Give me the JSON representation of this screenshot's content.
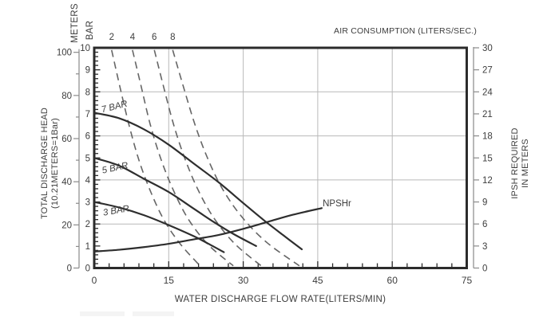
{
  "chart_data": {
    "type": "line",
    "title": "",
    "top_axis": {
      "label": "AIR CONSUMPTION (LITERS/SEC.)",
      "ticks": [
        {
          "label": "2",
          "flow": 3.5
        },
        {
          "label": "4",
          "flow": 7.7
        },
        {
          "label": "6",
          "flow": 12.1
        },
        {
          "label": "8",
          "flow": 15.8
        }
      ]
    },
    "x_axis": {
      "label": "WATER DISCHARGE FLOW RATE(LITERS/MIN)",
      "range": [
        0,
        75
      ],
      "major_ticks": [
        0,
        15,
        30,
        45,
        60,
        75
      ],
      "minor_step": 3
    },
    "left_axis": {
      "meters_label": "METERS",
      "bar_label": "BAR",
      "title_line1": "TOTAL DISCHARGE HEAD",
      "title_line2": "(10.21METERS=1Bar)",
      "bar_range": [
        0,
        10
      ],
      "bar_ticks": [
        0,
        1,
        2,
        3,
        4,
        5,
        6,
        7,
        8,
        9,
        10
      ],
      "bar_minor_step": 0.2,
      "meters_ticks": [
        0,
        20,
        40,
        60,
        80,
        100
      ],
      "meters_minor_step": 10,
      "meters_per_bar": 10.21
    },
    "right_axis": {
      "title_line1": "IPSH REQUIRED",
      "title_line2": "IN METERS",
      "range": [
        0,
        30
      ],
      "ticks": [
        0,
        3,
        6,
        9,
        12,
        15,
        18,
        21,
        24,
        27,
        30
      ]
    },
    "gridlines": {
      "vertical_flow": [
        15,
        30,
        45,
        60
      ],
      "horizontal_bar": [
        2,
        4,
        6,
        8
      ]
    },
    "series": [
      {
        "name": "7 BAR",
        "style": "solid",
        "label": {
          "text": "7 BAR",
          "flow": 4.2,
          "bar": 7.2,
          "angle": -14,
          "italic": true,
          "anchor": "middle"
        },
        "points": [
          [
            0,
            7.05
          ],
          [
            5,
            6.8
          ],
          [
            10,
            6.3
          ],
          [
            15,
            5.6
          ],
          [
            20,
            4.75
          ],
          [
            25,
            3.9
          ],
          [
            30,
            2.95
          ],
          [
            34,
            2.2
          ],
          [
            38,
            1.5
          ],
          [
            41.8,
            0.85
          ]
        ]
      },
      {
        "name": "5 BAR",
        "style": "solid",
        "label": {
          "text": "5 BAR",
          "flow": 4.3,
          "bar": 4.42,
          "angle": -12,
          "italic": true,
          "anchor": "middle"
        },
        "points": [
          [
            0,
            5.0
          ],
          [
            5,
            4.65
          ],
          [
            10,
            4.05
          ],
          [
            15,
            3.45
          ],
          [
            20,
            2.7
          ],
          [
            24,
            2.1
          ],
          [
            28,
            1.55
          ],
          [
            32.6,
            1.0
          ]
        ]
      },
      {
        "name": "3 BAR",
        "style": "solid",
        "label": {
          "text": "3 BAR",
          "flow": 4.5,
          "bar": 2.48,
          "angle": -10,
          "italic": true,
          "anchor": "middle"
        },
        "points": [
          [
            0,
            3.0
          ],
          [
            5,
            2.75
          ],
          [
            10,
            2.4
          ],
          [
            15,
            1.95
          ],
          [
            20,
            1.45
          ],
          [
            23,
            1.1
          ],
          [
            26.1,
            0.72
          ]
        ]
      },
      {
        "name": "NPSHr",
        "style": "solid",
        "label": {
          "text": "NPSHr",
          "flow": 46.0,
          "bar": 2.8,
          "angle": 0,
          "italic": false,
          "anchor": "start"
        },
        "points": [
          [
            0,
            0.75
          ],
          [
            5,
            0.83
          ],
          [
            10,
            0.95
          ],
          [
            15,
            1.1
          ],
          [
            20,
            1.3
          ],
          [
            25,
            1.5
          ],
          [
            30,
            1.78
          ],
          [
            35,
            2.1
          ],
          [
            40,
            2.42
          ],
          [
            45.8,
            2.72
          ]
        ]
      }
    ],
    "air_series": [
      {
        "name": "2",
        "style": "dashed",
        "points": [
          [
            3.5,
            9.9
          ],
          [
            5.2,
            8.2
          ],
          [
            7,
            6.5
          ],
          [
            9,
            4.9
          ],
          [
            11.3,
            3.5
          ],
          [
            14,
            2.2
          ],
          [
            17.3,
            1.1
          ],
          [
            21.3,
            0.1
          ]
        ]
      },
      {
        "name": "4",
        "style": "dashed",
        "points": [
          [
            7.7,
            9.9
          ],
          [
            9.5,
            8.2
          ],
          [
            11.3,
            6.5
          ],
          [
            13.5,
            4.9
          ],
          [
            16,
            3.5
          ],
          [
            19,
            2.2
          ],
          [
            23,
            1.05
          ],
          [
            28,
            0.1
          ]
        ]
      },
      {
        "name": "6",
        "style": "dashed",
        "points": [
          [
            12.1,
            9.9
          ],
          [
            14,
            8.2
          ],
          [
            16,
            6.5
          ],
          [
            18.2,
            5.0
          ],
          [
            20.8,
            3.6
          ],
          [
            24,
            2.3
          ],
          [
            28.3,
            1.1
          ],
          [
            33.6,
            0.1
          ]
        ]
      },
      {
        "name": "8",
        "style": "dashed",
        "points": [
          [
            15.8,
            9.9
          ],
          [
            18,
            8.2
          ],
          [
            20.3,
            6.5
          ],
          [
            22.8,
            5.0
          ],
          [
            25.8,
            3.6
          ],
          [
            29.8,
            2.3
          ],
          [
            34.8,
            1.15
          ],
          [
            41.3,
            0.1
          ]
        ]
      }
    ],
    "colors": {
      "frame": "#2b2b2b",
      "curve": "#2e2e2e",
      "dashed": "#666666",
      "grid": "#b9b9b9",
      "tick": "#4a4a4a",
      "text": "#3d3d3d"
    }
  }
}
